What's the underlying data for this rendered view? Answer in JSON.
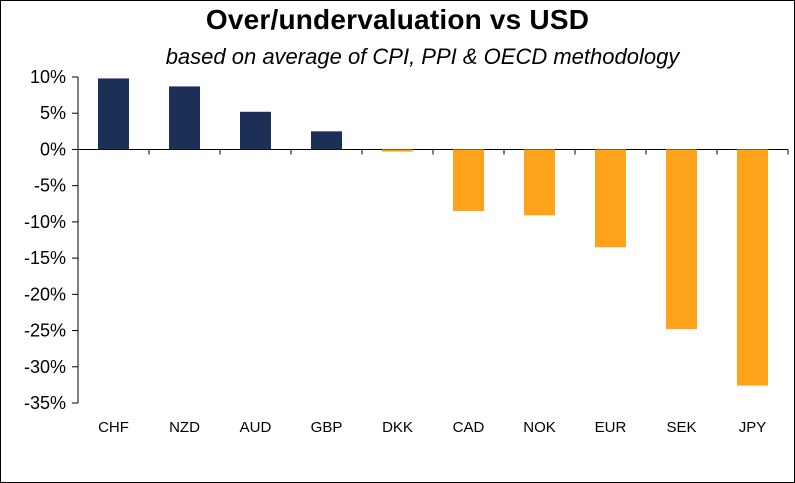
{
  "chart_data": {
    "type": "bar",
    "title": "Over/undervaluation  vs USD",
    "subtitle": "based on average of CPI, PPI & OECD methodology",
    "categories": [
      "CHF",
      "NZD",
      "AUD",
      "GBP",
      "DKK",
      "CAD",
      "NOK",
      "EUR",
      "SEK",
      "JPY"
    ],
    "values": [
      9.8,
      8.7,
      5.2,
      2.5,
      -0.3,
      -8.5,
      -9.1,
      -13.5,
      -24.8,
      -32.6
    ],
    "ylim": [
      -35,
      10
    ],
    "yticks": [
      10,
      5,
      0,
      -5,
      -10,
      -15,
      -20,
      -25,
      -30,
      -35
    ],
    "ytick_labels": [
      "10%",
      "5%",
      "0%",
      "-5%",
      "-10%",
      "-15%",
      "-20%",
      "-25%",
      "-30%",
      "-35%"
    ],
    "xlabel": "",
    "ylabel": "",
    "grid": false,
    "colors": {
      "positive": "#1b2f57",
      "negative": "#ffa31a"
    }
  }
}
